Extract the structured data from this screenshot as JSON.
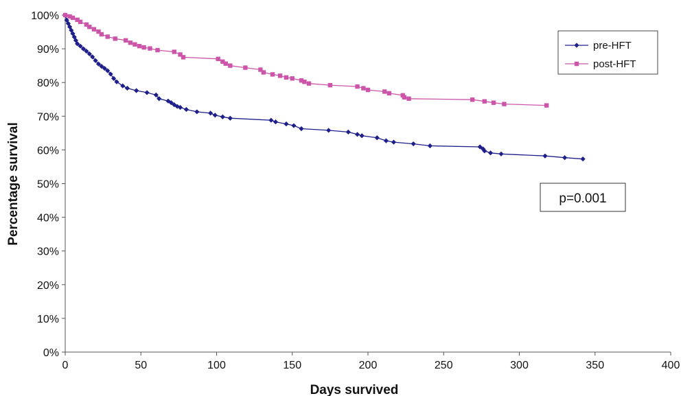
{
  "chart_data": {
    "type": "line",
    "title": "",
    "xlabel": "Days survived",
    "ylabel": "Percentage survival",
    "xlim": [
      0,
      400
    ],
    "ylim": [
      0,
      100
    ],
    "x_ticks": [
      "0",
      "50",
      "100",
      "150",
      "200",
      "250",
      "300",
      "350",
      "400"
    ],
    "y_ticks": [
      "0%",
      "10%",
      "20%",
      "30%",
      "40%",
      "50%",
      "60%",
      "70%",
      "80%",
      "90%",
      "100%"
    ],
    "grid": false,
    "legend_position": "top-right",
    "annotation": "p=0.001",
    "series": [
      {
        "name": "pre-HFT",
        "color": "#1f1f8c",
        "marker": "diamond",
        "points": [
          [
            0,
            100
          ],
          [
            1,
            98.5
          ],
          [
            2,
            97.5
          ],
          [
            3,
            96.5
          ],
          [
            4,
            95.5
          ],
          [
            5,
            94.5
          ],
          [
            6,
            93.5
          ],
          [
            7,
            92.5
          ],
          [
            8,
            91.5
          ],
          [
            10,
            90.8
          ],
          [
            12,
            90
          ],
          [
            14,
            89.3
          ],
          [
            16,
            88.5
          ],
          [
            18,
            87.6
          ],
          [
            20,
            86.5
          ],
          [
            22,
            85.5
          ],
          [
            24,
            84.8
          ],
          [
            26,
            84.2
          ],
          [
            28,
            83.5
          ],
          [
            30,
            82.5
          ],
          [
            32,
            81.2
          ],
          [
            34,
            80.2
          ],
          [
            38,
            79
          ],
          [
            41,
            78.3
          ],
          [
            47,
            77.6
          ],
          [
            54,
            77
          ],
          [
            60,
            76.3
          ],
          [
            62,
            75.2
          ],
          [
            68,
            74.5
          ],
          [
            70,
            74
          ],
          [
            72,
            73.4
          ],
          [
            74,
            72.9
          ],
          [
            76,
            72.6
          ],
          [
            80,
            72
          ],
          [
            87,
            71.3
          ],
          [
            96,
            70.9
          ],
          [
            99,
            70.3
          ],
          [
            104,
            69.8
          ],
          [
            109,
            69.4
          ],
          [
            136,
            68.8
          ],
          [
            139,
            68.3
          ],
          [
            146,
            67.7
          ],
          [
            151,
            67.2
          ],
          [
            156,
            66.3
          ],
          [
            174,
            65.8
          ],
          [
            187,
            65.3
          ],
          [
            193,
            64.6
          ],
          [
            196,
            64.2
          ],
          [
            206,
            63.6
          ],
          [
            212,
            62.7
          ],
          [
            217,
            62.3
          ],
          [
            230,
            61.8
          ],
          [
            241,
            61.2
          ],
          [
            274,
            60.9
          ],
          [
            276,
            60.3
          ],
          [
            277,
            59.7
          ],
          [
            281,
            59.1
          ],
          [
            288,
            58.8
          ],
          [
            317,
            58.2
          ],
          [
            330,
            57.7
          ],
          [
            342,
            57.3
          ]
        ]
      },
      {
        "name": "post-HFT",
        "color": "#cc55aa",
        "marker": "square",
        "points": [
          [
            0,
            100
          ],
          [
            3,
            99.6
          ],
          [
            5,
            99.2
          ],
          [
            8,
            98.6
          ],
          [
            10,
            98
          ],
          [
            14,
            97.2
          ],
          [
            16,
            96.5
          ],
          [
            19,
            95.8
          ],
          [
            22,
            95.1
          ],
          [
            24,
            94.3
          ],
          [
            28,
            93.6
          ],
          [
            33,
            93
          ],
          [
            40,
            92.5
          ],
          [
            43,
            91.8
          ],
          [
            46,
            91.3
          ],
          [
            49,
            90.8
          ],
          [
            52,
            90.4
          ],
          [
            56,
            90.1
          ],
          [
            61,
            89.6
          ],
          [
            72,
            89.1
          ],
          [
            76,
            88.3
          ],
          [
            78,
            87.5
          ],
          [
            101,
            87
          ],
          [
            104,
            86.2
          ],
          [
            106,
            85.6
          ],
          [
            109,
            85
          ],
          [
            119,
            84.4
          ],
          [
            129,
            83.8
          ],
          [
            131,
            83
          ],
          [
            137,
            82.4
          ],
          [
            142,
            82
          ],
          [
            146,
            81.5
          ],
          [
            150,
            81.2
          ],
          [
            156,
            80.6
          ],
          [
            158,
            80.2
          ],
          [
            161,
            79.7
          ],
          [
            175,
            79.2
          ],
          [
            193,
            78.8
          ],
          [
            197,
            78.3
          ],
          [
            200,
            77.8
          ],
          [
            211,
            77.3
          ],
          [
            214,
            76.8
          ],
          [
            223,
            76.2
          ],
          [
            224,
            75.6
          ],
          [
            227,
            75.2
          ],
          [
            269,
            74.9
          ],
          [
            277,
            74.4
          ],
          [
            283,
            74
          ],
          [
            290,
            73.6
          ],
          [
            318,
            73.2
          ]
        ]
      }
    ]
  }
}
